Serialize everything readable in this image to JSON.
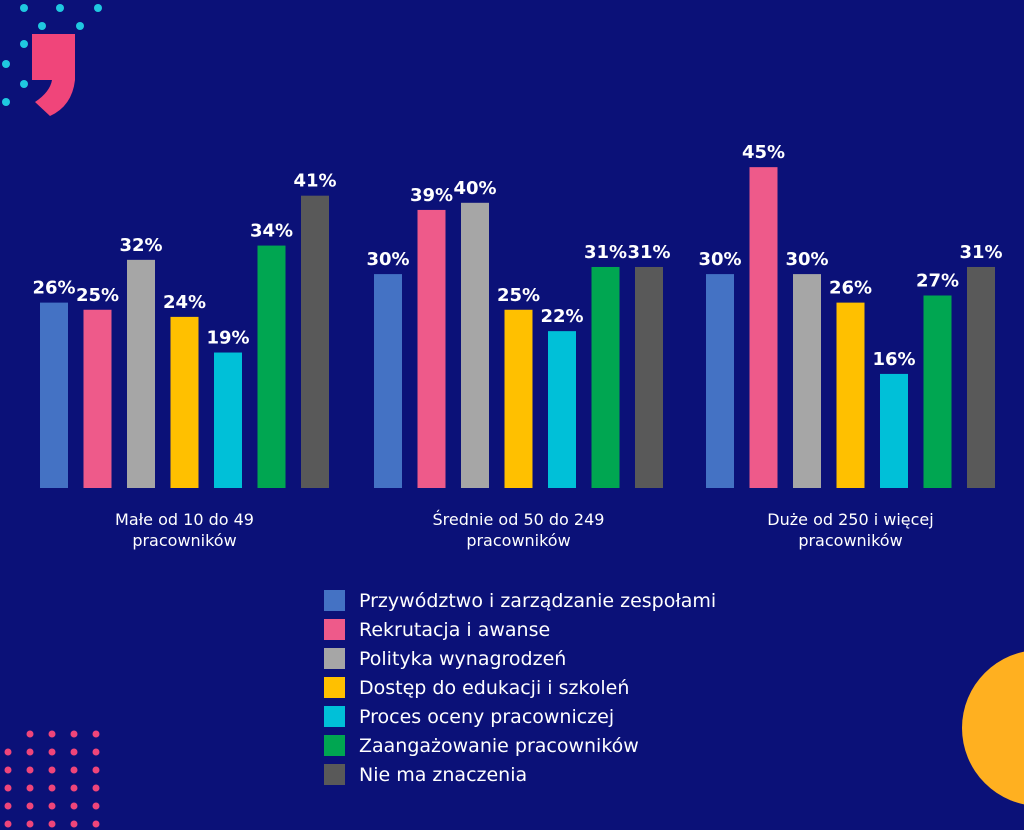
{
  "chart_data": {
    "type": "bar",
    "categories": [
      [
        "Małe od 10 do 49",
        "pracowników"
      ],
      [
        "Średnie od 50 do 249",
        "pracowników"
      ],
      [
        "Duże od 250 i więcej",
        "pracowników"
      ]
    ],
    "series": [
      {
        "name": "Przywództwo i zarządzanie zespołami",
        "color": "#4472c4",
        "values": [
          26,
          30,
          30
        ]
      },
      {
        "name": "Rekrutacja i awanse",
        "color": "#ee5a8a",
        "values": [
          25,
          39,
          45
        ]
      },
      {
        "name": "Polityka wynagrodzeń",
        "color": "#a6a6a6",
        "values": [
          32,
          40,
          30
        ]
      },
      {
        "name": "Dostęp do edukacji i szkoleń",
        "color": "#ffc000",
        "values": [
          24,
          25,
          26
        ]
      },
      {
        "name": "Proces oceny pracowniczej",
        "color": "#00c0d8",
        "values": [
          19,
          22,
          16
        ]
      },
      {
        "name": "Zaangażowanie pracowników",
        "color": "#00a651",
        "values": [
          34,
          31,
          27
        ]
      },
      {
        "name": "Nie ma znaczenia",
        "color": "#595959",
        "values": [
          41,
          31,
          31
        ]
      }
    ],
    "value_suffix": "%",
    "ylim": [
      0,
      45
    ],
    "grid": false,
    "legend_position": "bottom-center"
  },
  "colors": {
    "background": "#0b1178",
    "accent_pink": "#f0457a",
    "accent_cyan": "#1fc8e0",
    "accent_orange": "#ffb020"
  },
  "decorations": [
    "quote-mark-icon",
    "dot-pattern",
    "orange-circle"
  ]
}
